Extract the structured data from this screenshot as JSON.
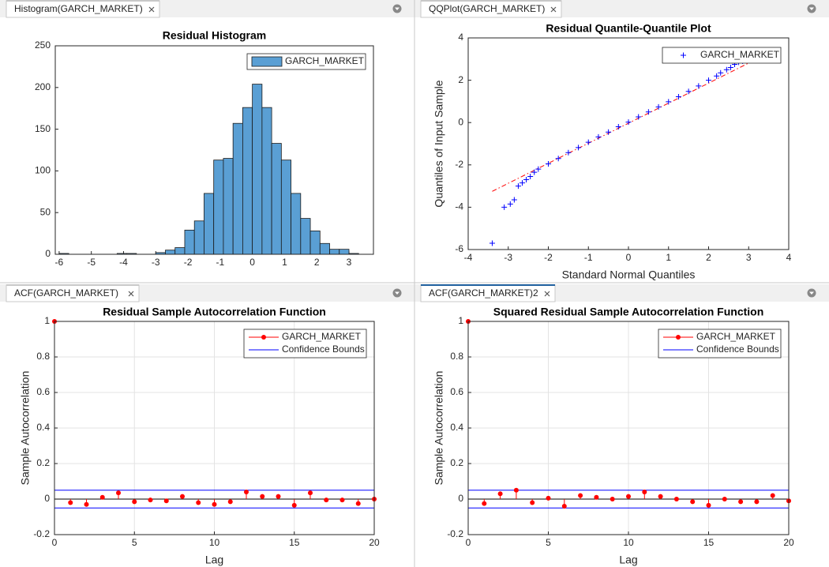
{
  "tabs": [
    "Histogram(GARCH_MARKET)",
    "QQPlot(GARCH_MARKET)",
    "ACF(GARCH_MARKET)",
    "ACF(GARCH_MARKET)2"
  ],
  "chart_data": [
    {
      "type": "histogram",
      "title": "Residual Histogram",
      "bins": [
        -6,
        -5.7,
        -5.4,
        -5.1,
        -4.8,
        -4.5,
        -4.2,
        -3.9,
        -3.6,
        -3.3,
        -3,
        -2.7,
        -2.4,
        -2.1,
        -1.8,
        -1.5,
        -1.2,
        -0.9,
        -0.6,
        -0.3,
        0,
        0.3,
        0.6,
        0.9,
        1.2,
        1.5,
        1.8,
        2.1,
        2.4,
        2.7,
        3,
        3.3
      ],
      "series": [
        {
          "name": "GARCH_MARKET",
          "color": "#5a9fd4",
          "values": [
            1,
            0,
            0,
            0,
            0,
            0,
            1,
            1,
            0,
            0,
            2,
            5,
            8,
            29,
            40,
            73,
            113,
            115,
            157,
            176,
            204,
            176,
            133,
            113,
            73,
            43,
            28,
            13,
            6,
            6,
            1
          ]
        }
      ],
      "xlim": [
        -6.12,
        3.76
      ],
      "xticks": [
        -6,
        -5,
        -4,
        -3,
        -2,
        -1,
        0,
        1,
        2,
        3
      ],
      "ylim": [
        0,
        250
      ],
      "yticks": [
        0,
        50,
        100,
        150,
        200,
        250
      ],
      "grid": false,
      "legend": "upper right"
    },
    {
      "type": "qqplot",
      "title": "Residual Quantile-Quantile Plot",
      "x_label": "Standard Normal Quantiles",
      "y_label": "Quantiles of Input Sample",
      "series": [
        {
          "name": "GARCH_MARKET",
          "color": "#0000ff",
          "x": [
            -3.4,
            -3.1,
            -2.95,
            -2.85,
            -2.75,
            -2.65,
            -2.55,
            -2.45,
            -2.35,
            -2.25,
            -2,
            -1.75,
            -1.5,
            -1.25,
            -1,
            -0.75,
            -0.5,
            -0.25,
            0,
            0.25,
            0.5,
            0.75,
            1,
            1.25,
            1.5,
            1.75,
            2,
            2.2,
            2.3,
            2.45,
            2.55,
            2.65,
            2.75,
            2.85,
            2.95
          ],
          "values": [
            -5.7,
            -4.0,
            -3.85,
            -3.65,
            -3.0,
            -2.85,
            -2.7,
            -2.55,
            -2.35,
            -2.2,
            -1.95,
            -1.7,
            -1.42,
            -1.18,
            -0.93,
            -0.68,
            -0.45,
            -0.2,
            0.02,
            0.27,
            0.5,
            0.74,
            0.98,
            1.22,
            1.47,
            1.73,
            2.0,
            2.2,
            2.35,
            2.5,
            2.6,
            2.75,
            2.85,
            2.9,
            2.95
          ]
        }
      ],
      "reference_line": {
        "color": "#ff0000",
        "x": [
          -3.4,
          3.2
        ],
        "y": [
          -3.25,
          3.0
        ]
      },
      "xlim": [
        -4,
        4
      ],
      "xticks": [
        -4,
        -3,
        -2,
        -1,
        0,
        1,
        2,
        3,
        4
      ],
      "ylim": [
        -6,
        4
      ],
      "yticks": [
        -6,
        -4,
        -2,
        0,
        2,
        4
      ],
      "grid": false,
      "legend": "upper right"
    },
    {
      "type": "stem",
      "title": "Residual Sample Autocorrelation Function",
      "x_label": "Lag",
      "y_label": "Sample Autocorrelation",
      "x": [
        0,
        1,
        2,
        3,
        4,
        5,
        6,
        7,
        8,
        9,
        10,
        11,
        12,
        13,
        14,
        15,
        16,
        17,
        18,
        19,
        20
      ],
      "series": [
        {
          "name": "GARCH_MARKET",
          "color": "#ff0000",
          "values": [
            1,
            -0.02,
            -0.03,
            0.01,
            0.035,
            -0.015,
            -0.005,
            -0.01,
            0.015,
            -0.02,
            -0.03,
            -0.015,
            0.04,
            0.015,
            0.015,
            -0.035,
            0.035,
            -0.005,
            -0.005,
            -0.025,
            0
          ]
        }
      ],
      "confidence_bounds": {
        "name": "Confidence Bounds",
        "color": "#0000ff",
        "values": [
          0.05,
          -0.05
        ]
      },
      "xlim": [
        0,
        20
      ],
      "xticks": [
        0,
        5,
        10,
        15,
        20
      ],
      "ylim": [
        -0.2,
        1
      ],
      "yticks": [
        -0.2,
        0,
        0.2,
        0.4,
        0.6,
        0.8,
        1
      ],
      "grid": true,
      "legend": "upper right"
    },
    {
      "type": "stem",
      "title": "Squared Residual Sample Autocorrelation Function",
      "x_label": "Lag",
      "y_label": "Sample Autocorrelation",
      "x": [
        0,
        1,
        2,
        3,
        4,
        5,
        6,
        7,
        8,
        9,
        10,
        11,
        12,
        13,
        14,
        15,
        16,
        17,
        18,
        19,
        20
      ],
      "series": [
        {
          "name": "GARCH_MARKET",
          "color": "#ff0000",
          "values": [
            1,
            -0.025,
            0.03,
            0.05,
            -0.02,
            0.005,
            -0.04,
            0.02,
            0.01,
            0,
            0.015,
            0.04,
            0.015,
            0,
            -0.015,
            -0.035,
            0,
            -0.015,
            -0.015,
            0.02,
            -0.01
          ]
        }
      ],
      "confidence_bounds": {
        "name": "Confidence Bounds",
        "color": "#0000ff",
        "values": [
          0.05,
          -0.05
        ]
      },
      "xlim": [
        0,
        20
      ],
      "xticks": [
        0,
        5,
        10,
        15,
        20
      ],
      "ylim": [
        -0.2,
        1
      ],
      "yticks": [
        -0.2,
        0,
        0.2,
        0.4,
        0.6,
        0.8,
        1
      ],
      "grid": true,
      "legend": "upper right"
    }
  ]
}
